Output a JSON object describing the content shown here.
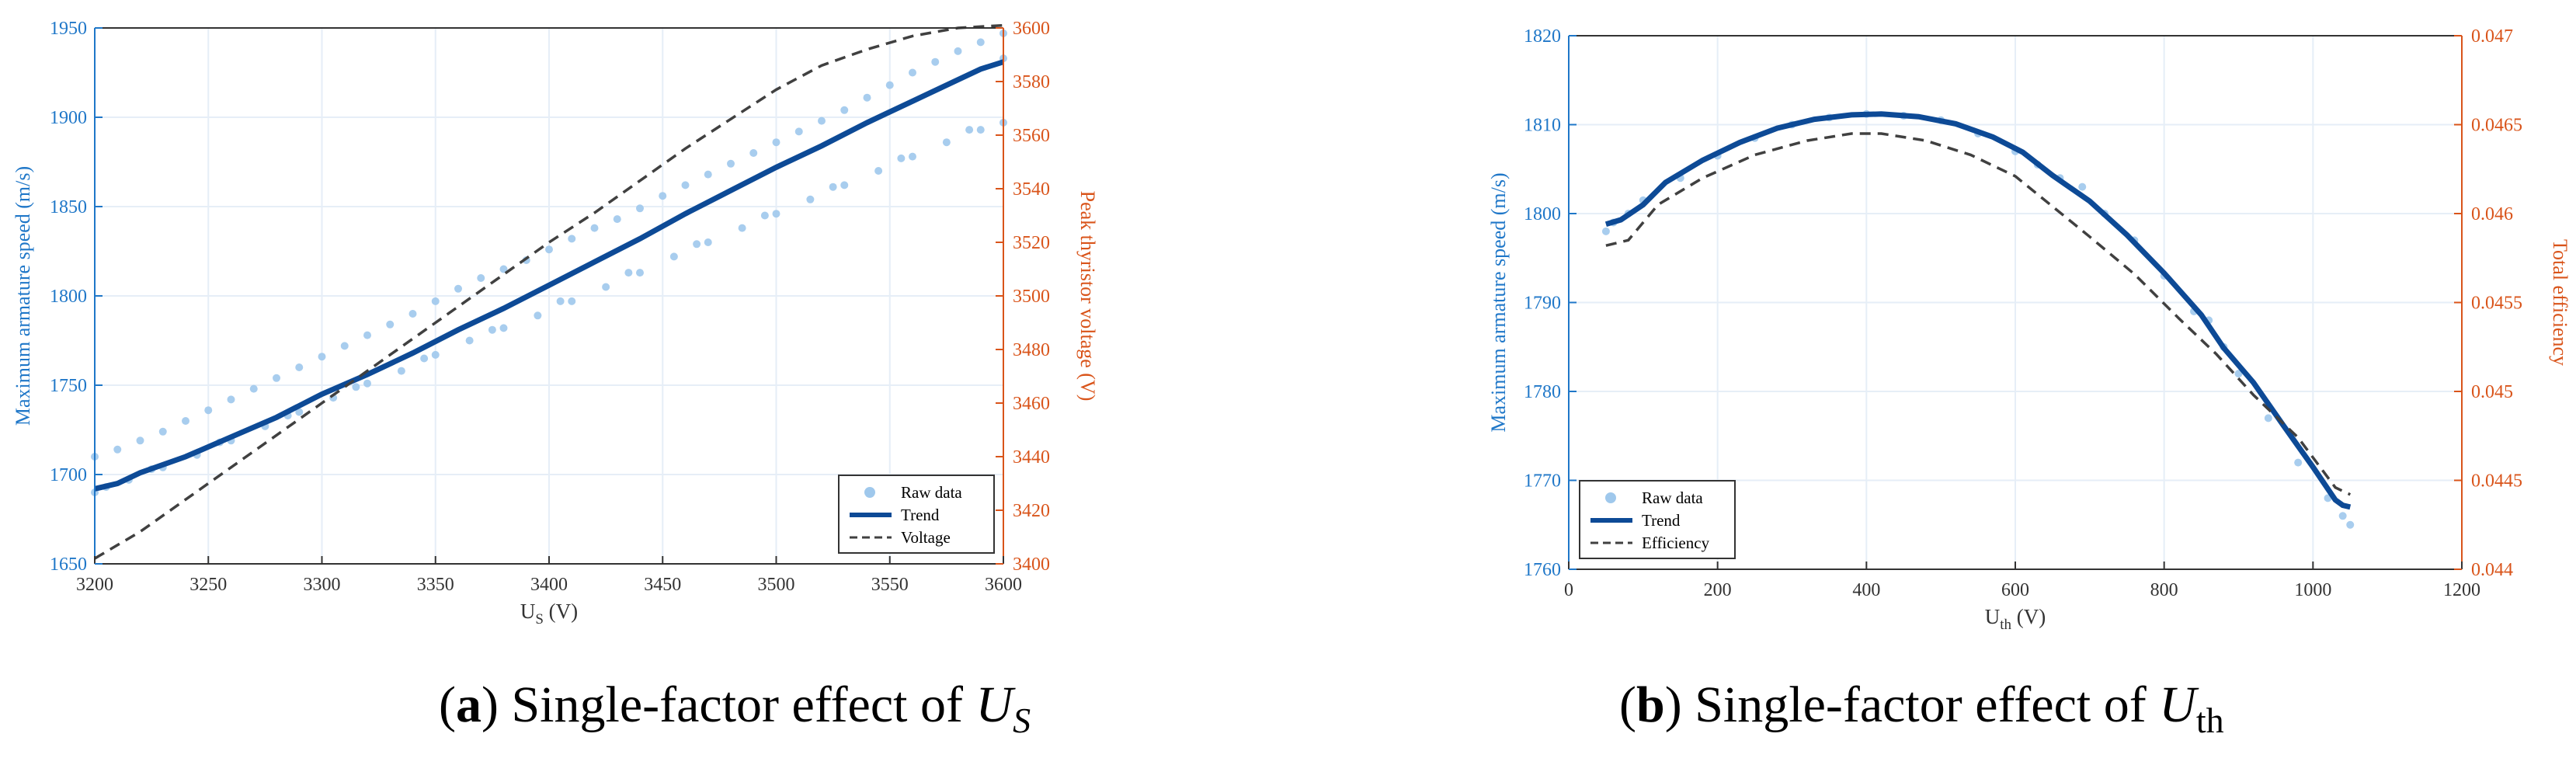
{
  "colors": {
    "left_axis": "#1f77c8",
    "right_axis": "#d9541a",
    "raw": "#9fc8ec",
    "trend": "#0d4a96",
    "dashed": "#404040",
    "grid": "#e6eef7"
  },
  "chart_data": [
    {
      "type": "line",
      "caption": {
        "label": "a",
        "text": "Single-factor effect of",
        "var": "U",
        "sub": "S"
      },
      "xlabel": {
        "main": "U",
        "sub": "S",
        "unit": "(V)"
      },
      "ylabel_left": "Maximum armature speed (m/s)",
      "ylabel_right": "Peak thyristor voltage (V)",
      "xlim": [
        3200,
        3600
      ],
      "ylim_left": [
        1650,
        1950
      ],
      "ylim_right": [
        3400,
        3600
      ],
      "xticks": [
        "3200",
        "3250",
        "3300",
        "3350",
        "3400",
        "3450",
        "3500",
        "3550",
        "3600"
      ],
      "yticks_left": [
        "1650",
        "1700",
        "1750",
        "1800",
        "1850",
        "1900",
        "1950"
      ],
      "yticks_right": [
        "3400",
        "3420",
        "3440",
        "3460",
        "3480",
        "3500",
        "3520",
        "3540",
        "3560",
        "3580",
        "3600"
      ],
      "legend": {
        "position": "bottom-right",
        "entries": [
          "Raw data",
          "Trend",
          "Voltage"
        ]
      },
      "series": [
        {
          "name": "Raw data",
          "axis": "left",
          "style": "scatter",
          "points": [
            [
              3200,
              1710
            ],
            [
              3210,
              1714
            ],
            [
              3220,
              1719
            ],
            [
              3230,
              1724
            ],
            [
              3240,
              1730
            ],
            [
              3250,
              1736
            ],
            [
              3260,
              1742
            ],
            [
              3270,
              1748
            ],
            [
              3280,
              1754
            ],
            [
              3290,
              1760
            ],
            [
              3300,
              1766
            ],
            [
              3310,
              1772
            ],
            [
              3320,
              1778
            ],
            [
              3330,
              1784
            ],
            [
              3340,
              1790
            ],
            [
              3350,
              1797
            ],
            [
              3360,
              1804
            ],
            [
              3370,
              1810
            ],
            [
              3380,
              1815
            ],
            [
              3390,
              1820
            ],
            [
              3400,
              1826
            ],
            [
              3410,
              1832
            ],
            [
              3420,
              1838
            ],
            [
              3430,
              1843
            ],
            [
              3440,
              1849
            ],
            [
              3450,
              1856
            ],
            [
              3460,
              1862
            ],
            [
              3470,
              1868
            ],
            [
              3480,
              1874
            ],
            [
              3490,
              1880
            ],
            [
              3500,
              1886
            ],
            [
              3510,
              1892
            ],
            [
              3520,
              1898
            ],
            [
              3530,
              1904
            ],
            [
              3540,
              1911
            ],
            [
              3550,
              1918
            ],
            [
              3560,
              1925
            ],
            [
              3570,
              1931
            ],
            [
              3580,
              1937
            ],
            [
              3590,
              1942
            ],
            [
              3600,
              1947
            ],
            [
              3200,
              1690
            ],
            [
              3215,
              1697
            ],
            [
              3230,
              1704
            ],
            [
              3245,
              1711
            ],
            [
              3260,
              1719
            ],
            [
              3275,
              1727
            ],
            [
              3290,
              1735
            ],
            [
              3305,
              1743
            ],
            [
              3320,
              1751
            ],
            [
              3335,
              1758
            ],
            [
              3350,
              1767
            ],
            [
              3365,
              1775
            ],
            [
              3380,
              1782
            ],
            [
              3395,
              1789
            ],
            [
              3410,
              1797
            ],
            [
              3425,
              1805
            ],
            [
              3440,
              1813
            ],
            [
              3455,
              1822
            ],
            [
              3470,
              1830
            ],
            [
              3485,
              1838
            ],
            [
              3500,
              1846
            ],
            [
              3515,
              1854
            ],
            [
              3530,
              1862
            ],
            [
              3545,
              1870
            ],
            [
              3560,
              1878
            ],
            [
              3575,
              1886
            ],
            [
              3590,
              1893
            ],
            [
              3600,
              1897
            ],
            [
              3205,
              1693
            ],
            [
              3225,
              1703
            ],
            [
              3255,
              1718
            ],
            [
              3285,
              1733
            ],
            [
              3315,
              1749
            ],
            [
              3345,
              1765
            ],
            [
              3375,
              1781
            ],
            [
              3405,
              1797
            ],
            [
              3435,
              1813
            ],
            [
              3465,
              1829
            ],
            [
              3495,
              1845
            ],
            [
              3525,
              1861
            ],
            [
              3555,
              1877
            ],
            [
              3585,
              1893
            ],
            [
              3600,
              1933
            ]
          ]
        },
        {
          "name": "Trend",
          "axis": "left",
          "style": "solid",
          "points": [
            [
              3200,
              1692
            ],
            [
              3210,
              1695
            ],
            [
              3220,
              1701
            ],
            [
              3240,
              1710
            ],
            [
              3260,
              1721
            ],
            [
              3280,
              1732
            ],
            [
              3300,
              1745
            ],
            [
              3320,
              1756
            ],
            [
              3340,
              1768
            ],
            [
              3360,
              1781
            ],
            [
              3380,
              1793
            ],
            [
              3400,
              1806
            ],
            [
              3420,
              1819
            ],
            [
              3440,
              1832
            ],
            [
              3460,
              1846
            ],
            [
              3480,
              1859
            ],
            [
              3500,
              1872
            ],
            [
              3520,
              1884
            ],
            [
              3540,
              1897
            ],
            [
              3560,
              1909
            ],
            [
              3580,
              1921
            ],
            [
              3590,
              1927
            ],
            [
              3600,
              1931
            ]
          ]
        },
        {
          "name": "Voltage",
          "axis": "right",
          "style": "dashed",
          "points": [
            [
              3200,
              3402
            ],
            [
              3220,
              3412
            ],
            [
              3240,
              3424
            ],
            [
              3260,
              3436
            ],
            [
              3280,
              3448
            ],
            [
              3300,
              3460
            ],
            [
              3320,
              3472
            ],
            [
              3340,
              3484
            ],
            [
              3360,
              3496
            ],
            [
              3380,
              3508
            ],
            [
              3400,
              3520
            ],
            [
              3420,
              3531
            ],
            [
              3440,
              3543
            ],
            [
              3460,
              3555
            ],
            [
              3480,
              3566
            ],
            [
              3500,
              3577
            ],
            [
              3520,
              3586
            ],
            [
              3540,
              3592
            ],
            [
              3560,
              3597
            ],
            [
              3580,
              3600
            ],
            [
              3600,
              3601
            ]
          ]
        }
      ]
    },
    {
      "type": "line",
      "caption": {
        "label": "b",
        "text": "Single-factor effect of",
        "var": "U",
        "sub": "th"
      },
      "xlabel": {
        "main": "U",
        "sub": "th",
        "unit": "(V)"
      },
      "ylabel_left": "Maximum armature speed (m/s)",
      "ylabel_right": "Total efficiency",
      "xlim": [
        0,
        1200
      ],
      "ylim_left": [
        1760,
        1820
      ],
      "ylim_right": [
        0.044,
        0.047
      ],
      "xticks": [
        "0",
        "200",
        "400",
        "600",
        "800",
        "1000",
        "1200"
      ],
      "yticks_left": [
        "1760",
        "1770",
        "1780",
        "1790",
        "1800",
        "1810",
        "1820"
      ],
      "yticks_right": [
        "0.044",
        "0.0445",
        "0.045",
        "0.0455",
        "0.046",
        "0.0465",
        "0.047"
      ],
      "legend": {
        "position": "bottom-left",
        "entries": [
          "Raw data",
          "Trend",
          "Efficiency"
        ]
      },
      "series": [
        {
          "name": "Raw data",
          "axis": "left",
          "style": "scatter",
          "points": [
            [
              50,
              1798
            ],
            [
              60,
              1799
            ],
            [
              80,
              1800
            ],
            [
              100,
              1801.5
            ],
            [
              150,
              1804
            ],
            [
              200,
              1806.5
            ],
            [
              250,
              1808.5
            ],
            [
              300,
              1810
            ],
            [
              350,
              1810.8
            ],
            [
              400,
              1811.2
            ],
            [
              450,
              1811
            ],
            [
              500,
              1810.5
            ],
            [
              550,
              1809
            ],
            [
              600,
              1807
            ],
            [
              630,
              1805.5
            ],
            [
              660,
              1804
            ],
            [
              690,
              1803
            ],
            [
              720,
              1800
            ],
            [
              760,
              1797
            ],
            [
              800,
              1793
            ],
            [
              840,
              1789
            ],
            [
              860,
              1788
            ],
            [
              880,
              1785
            ],
            [
              900,
              1782
            ],
            [
              940,
              1777
            ],
            [
              980,
              1772
            ],
            [
              1020,
              1768
            ],
            [
              1040,
              1766
            ],
            [
              1050,
              1765
            ]
          ]
        },
        {
          "name": "Trend",
          "axis": "left",
          "style": "solid",
          "points": [
            [
              50,
              1798.8
            ],
            [
              70,
              1799.3
            ],
            [
              100,
              1801
            ],
            [
              130,
              1803.5
            ],
            [
              180,
              1806
            ],
            [
              230,
              1808
            ],
            [
              280,
              1809.6
            ],
            [
              330,
              1810.6
            ],
            [
              380,
              1811.1
            ],
            [
              420,
              1811.2
            ],
            [
              470,
              1810.9
            ],
            [
              520,
              1810.1
            ],
            [
              570,
              1808.6
            ],
            [
              610,
              1806.9
            ],
            [
              650,
              1804.3
            ],
            [
              700,
              1801.4
            ],
            [
              750,
              1797.6
            ],
            [
              800,
              1793.3
            ],
            [
              850,
              1788.6
            ],
            [
              880,
              1784.9
            ],
            [
              920,
              1781
            ],
            [
              960,
              1776.2
            ],
            [
              1000,
              1771.5
            ],
            [
              1030,
              1767.8
            ],
            [
              1040,
              1767.2
            ],
            [
              1050,
              1767
            ]
          ]
        },
        {
          "name": "Efficiency",
          "axis": "right",
          "style": "dashed",
          "points": [
            [
              50,
              0.04582
            ],
            [
              80,
              0.04585
            ],
            [
              120,
              0.04605
            ],
            [
              180,
              0.0462
            ],
            [
              250,
              0.04633
            ],
            [
              320,
              0.04641
            ],
            [
              380,
              0.04645
            ],
            [
              420,
              0.04645
            ],
            [
              480,
              0.04641
            ],
            [
              540,
              0.04633
            ],
            [
              600,
              0.04621
            ],
            [
              650,
              0.04604
            ],
            [
              700,
              0.04587
            ],
            [
              760,
              0.04566
            ],
            [
              820,
              0.04541
            ],
            [
              870,
              0.04521
            ],
            [
              920,
              0.04498
            ],
            [
              980,
              0.04474
            ],
            [
              1030,
              0.04446
            ],
            [
              1050,
              0.04442
            ]
          ]
        }
      ]
    }
  ]
}
